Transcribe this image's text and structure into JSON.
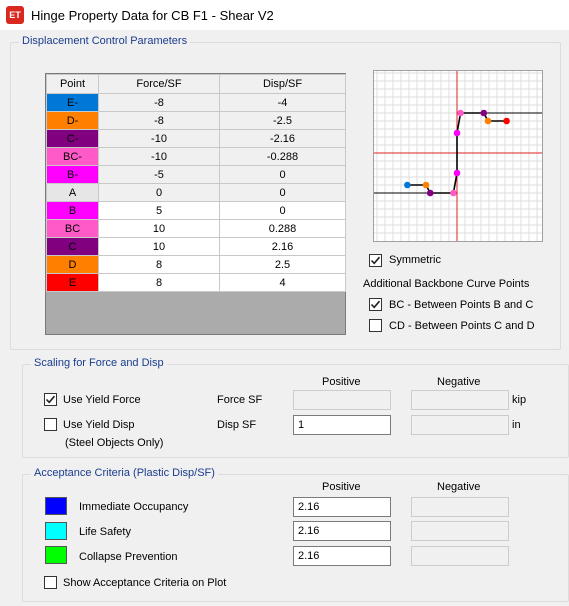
{
  "window": {
    "icon_text": "ET",
    "title": "Hinge Property Data for CB F1 - Shear V2"
  },
  "displacement": {
    "group_label": "Displacement Control Parameters",
    "headers": [
      "Point",
      "Force/SF",
      "Disp/SF"
    ],
    "rows": [
      {
        "point": "E-",
        "force": "-8",
        "disp": "-4",
        "color": "#0078d7"
      },
      {
        "point": "D-",
        "force": "-8",
        "disp": "-2.5",
        "color": "#ff8000"
      },
      {
        "point": "C-",
        "force": "-10",
        "disp": "-2.16",
        "color": "#800080"
      },
      {
        "point": "BC-",
        "force": "-10",
        "disp": "-0.288",
        "color": "#ff5ac8"
      },
      {
        "point": "B-",
        "force": "-5",
        "disp": "0",
        "color": "#ff00ff"
      },
      {
        "point": "A",
        "force": "0",
        "disp": "0",
        "color": "#e6e6e6"
      },
      {
        "point": "B",
        "force": "5",
        "disp": "0",
        "color": "#ff00ff"
      },
      {
        "point": "BC",
        "force": "10",
        "disp": "0.288",
        "color": "#ff5ac8"
      },
      {
        "point": "C",
        "force": "10",
        "disp": "2.16",
        "color": "#800080"
      },
      {
        "point": "D",
        "force": "8",
        "disp": "2.5",
        "color": "#ff8000"
      },
      {
        "point": "E",
        "force": "8",
        "disp": "4",
        "color": "#ff0000"
      }
    ],
    "symmetric_label": "Symmetric",
    "symmetric_checked": true,
    "additional_label": "Additional Backbone Curve Points",
    "bc_label": "BC - Between Points B and C",
    "bc_checked": true,
    "cd_label": "CD - Between Points C and D",
    "cd_checked": false
  },
  "scaling": {
    "group_label": "Scaling for Force and Disp",
    "positive_header": "Positive",
    "negative_header": "Negative",
    "use_yield_force_label": "Use Yield Force",
    "use_yield_force_checked": true,
    "use_yield_disp_label": "Use Yield Disp",
    "use_yield_disp_checked": false,
    "steel_note": "(Steel Objects Only)",
    "force_sf_label": "Force SF",
    "disp_sf_label": "Disp SF",
    "force_sf_positive": "",
    "force_sf_negative": "",
    "disp_sf_positive": "1",
    "disp_sf_negative": "",
    "force_unit": "kip",
    "disp_unit": "in"
  },
  "acceptance": {
    "group_label": "Acceptance Criteria (Plastic Disp/SF)",
    "positive_header": "Positive",
    "negative_header": "Negative",
    "io_label": "Immediate Occupancy",
    "io_color": "#0000ff",
    "io_positive": "2.16",
    "ls_label": "Life Safety",
    "ls_color": "#00ffff",
    "ls_positive": "2.16",
    "cp_label": "Collapse Prevention",
    "cp_color": "#00ff00",
    "cp_positive": "2.16",
    "show_label": "Show Acceptance Criteria on Plot",
    "show_checked": false
  }
}
